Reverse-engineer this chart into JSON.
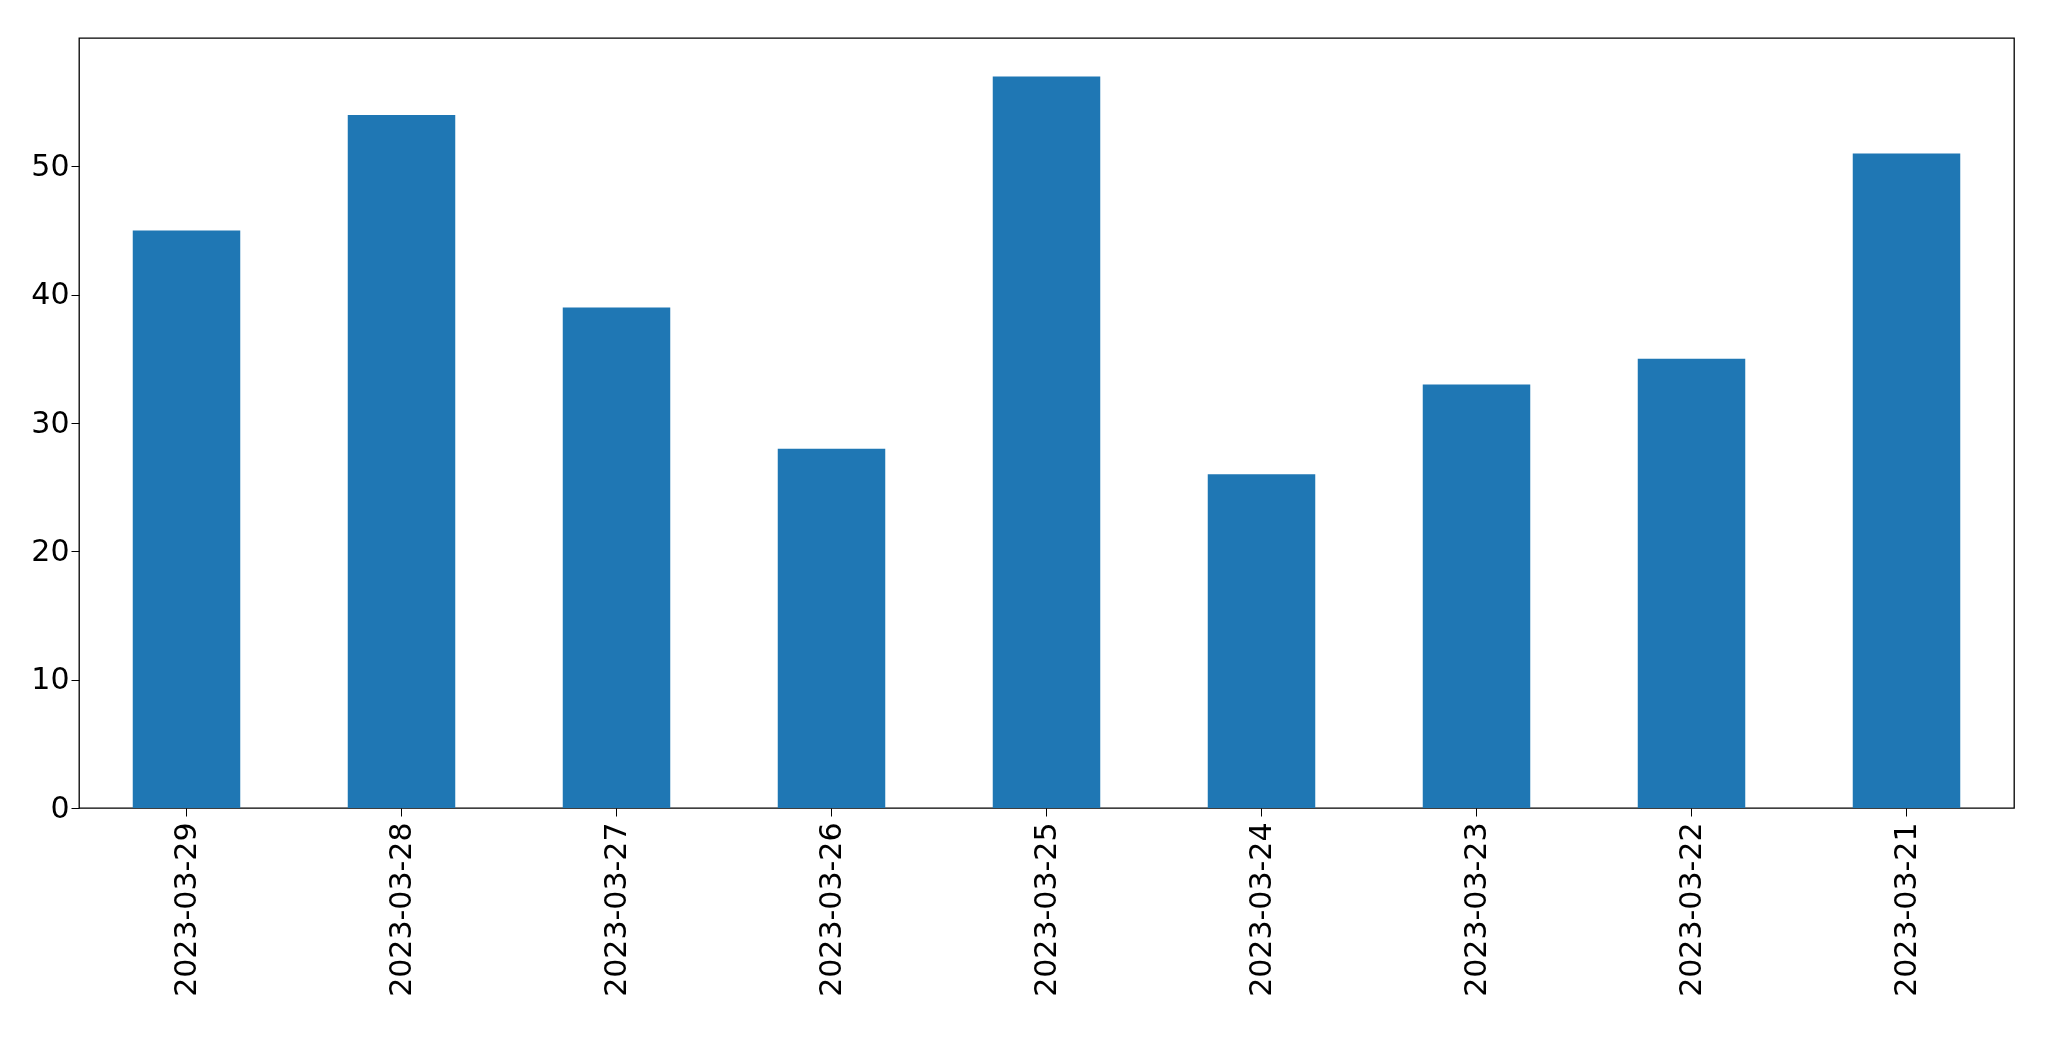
{
  "chart_data": {
    "type": "bar",
    "categories": [
      "2023-03-29",
      "2023-03-28",
      "2023-03-27",
      "2023-03-26",
      "2023-03-25",
      "2023-03-24",
      "2023-03-23",
      "2023-03-22",
      "2023-03-21"
    ],
    "values": [
      45,
      54,
      39,
      28,
      57,
      26,
      33,
      35,
      51
    ],
    "color": "#1f77b4",
    "ylim": [
      0,
      60
    ],
    "yticks": [
      0,
      10,
      20,
      30,
      40,
      50
    ],
    "grid": false
  }
}
